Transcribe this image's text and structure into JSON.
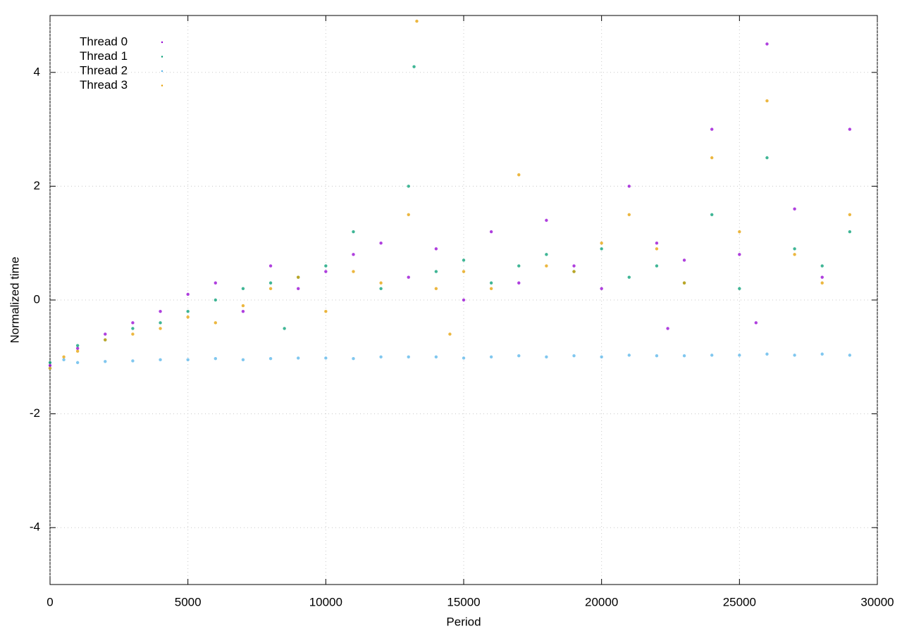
{
  "chart_data": {
    "type": "scatter",
    "x_label": "Period",
    "y_label": "Normalized time",
    "xlim": [
      0,
      30000
    ],
    "ylim": [
      -5,
      5
    ],
    "xticks": [
      0,
      5000,
      10000,
      15000,
      20000,
      25000,
      30000
    ],
    "yticks": [
      -4,
      -2,
      0,
      2,
      4
    ],
    "grid": true,
    "series": [
      {
        "name": "Thread 0",
        "color": "#9400d3",
        "x": [
          0,
          1000,
          2000,
          3000,
          4000,
          5000,
          6000,
          7000,
          8000,
          9000,
          10000,
          11000,
          12000,
          13000,
          14000,
          15000,
          16000,
          17000,
          18000,
          19000,
          20000,
          21000,
          22000,
          22400,
          23000,
          24000,
          25000,
          25600,
          26000,
          27000,
          28000,
          29000
        ],
        "values": [
          -1.15,
          -0.85,
          -0.6,
          -0.4,
          -0.2,
          0.1,
          0.3,
          -0.2,
          0.6,
          0.2,
          0.5,
          0.8,
          1.0,
          0.4,
          0.9,
          0.0,
          1.2,
          0.3,
          1.4,
          0.6,
          0.2,
          2.0,
          1.0,
          -0.5,
          0.7,
          3.0,
          0.8,
          -0.4,
          4.5,
          1.6,
          0.4,
          3.0
        ]
      },
      {
        "name": "Thread 1",
        "color": "#009e73",
        "x": [
          0,
          1000,
          2000,
          3000,
          4000,
          5000,
          6000,
          7000,
          8000,
          8500,
          9000,
          10000,
          11000,
          12000,
          13000,
          13200,
          14000,
          15000,
          16000,
          17000,
          18000,
          19000,
          20000,
          21000,
          22000,
          23000,
          24000,
          25000,
          26000,
          27000,
          28000,
          29000
        ],
        "values": [
          -1.1,
          -0.8,
          -0.7,
          -0.5,
          -0.4,
          -0.2,
          0.0,
          0.2,
          0.3,
          -0.5,
          0.4,
          0.6,
          1.2,
          0.2,
          2.0,
          4.1,
          0.5,
          0.7,
          0.3,
          0.6,
          0.8,
          0.5,
          0.9,
          0.4,
          0.6,
          0.3,
          1.5,
          0.2,
          2.5,
          0.9,
          0.6,
          1.2
        ]
      },
      {
        "name": "Thread 2",
        "color": "#56b4e9",
        "x": [
          0,
          500,
          1000,
          2000,
          3000,
          4000,
          5000,
          6000,
          7000,
          8000,
          9000,
          10000,
          11000,
          12000,
          13000,
          14000,
          15000,
          16000,
          17000,
          18000,
          19000,
          20000,
          21000,
          22000,
          23000,
          24000,
          25000,
          26000,
          27000,
          28000,
          29000
        ],
        "values": [
          -1.2,
          -1.05,
          -1.1,
          -1.08,
          -1.07,
          -1.05,
          -1.05,
          -1.03,
          -1.05,
          -1.03,
          -1.02,
          -1.02,
          -1.03,
          -1.0,
          -1.0,
          -1.0,
          -1.02,
          -1.0,
          -0.98,
          -1.0,
          -0.98,
          -1.0,
          -0.97,
          -0.98,
          -0.98,
          -0.97,
          -0.97,
          -0.95,
          -0.97,
          -0.95,
          -0.97
        ]
      },
      {
        "name": "Thread 3",
        "color": "#e69f00",
        "x": [
          0,
          500,
          1000,
          2000,
          3000,
          4000,
          5000,
          6000,
          7000,
          8000,
          9000,
          10000,
          11000,
          12000,
          13000,
          13300,
          14000,
          14500,
          15000,
          16000,
          17000,
          18000,
          19000,
          20000,
          21000,
          22000,
          23000,
          24000,
          25000,
          26000,
          27000,
          28000,
          29000
        ],
        "values": [
          -1.2,
          -1.0,
          -0.9,
          -0.7,
          -0.6,
          -0.5,
          -0.3,
          -0.4,
          -0.1,
          0.2,
          0.4,
          -0.2,
          0.5,
          0.3,
          1.5,
          4.9,
          0.2,
          -0.6,
          0.5,
          0.2,
          2.2,
          0.6,
          0.5,
          1.0,
          1.5,
          0.9,
          0.3,
          2.5,
          1.2,
          3.5,
          0.8,
          0.3,
          1.5
        ]
      }
    ]
  }
}
